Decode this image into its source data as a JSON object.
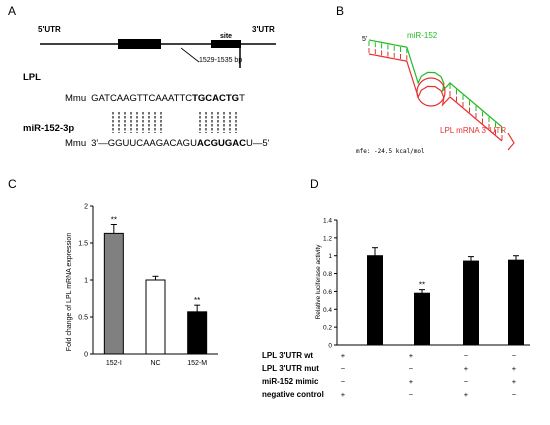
{
  "panels": {
    "A": {
      "letter": "A",
      "utr5": "5'UTR",
      "utr3": "3'UTR",
      "site": "site",
      "site_range": "1529-1535  bp",
      "gene": "LPL",
      "species": "Mmu",
      "mrna_plain": "GATCAAGTTCAAATTC",
      "mrna_bold": "TGCACTG",
      "mrna_tail": "T",
      "mirna_name": "miR-152-3p",
      "mirna_species": "Mmu",
      "mirna_plain": "3'—GGUUCAAGACAGU",
      "mirna_bold": "ACGUGAC",
      "mirna_tail": "U—5'"
    },
    "B": {
      "letter": "B",
      "five_prime": "5'",
      "mirna_label": "miR-152",
      "target_label": "LPL mRNA 3' UTR",
      "mfe": "mfe: -24.5 kcal/mol",
      "mirna_color": "#22bb22",
      "target_color": "#e83030"
    },
    "C": {
      "letter": "C",
      "ylabel": "Fold change of LPL mRNA expression",
      "yticks": [
        "0",
        "0.5",
        "1",
        "1.5",
        "2"
      ]
    },
    "D": {
      "letter": "D",
      "ylabel": "Relative luciferase activity",
      "yticks": [
        "0",
        "0.2",
        "0.4",
        "0.6",
        "0.8",
        "1",
        "1.2",
        "1.4"
      ],
      "conditions": [
        {
          "label": "LPL  3'UTR wt",
          "signs": [
            "+",
            "+",
            "−",
            "−"
          ]
        },
        {
          "label": "LPL  3'UTR mut",
          "signs": [
            "−",
            "−",
            "+",
            "+"
          ]
        },
        {
          "label": "miR-152 mimic",
          "signs": [
            "−",
            "+",
            "−",
            "+"
          ]
        },
        {
          "label": "negative control",
          "signs": [
            "+",
            "−",
            "+",
            "−"
          ]
        }
      ]
    }
  },
  "chart_data": [
    {
      "type": "bar",
      "categories": [
        "152-I",
        "NC",
        "152-M"
      ],
      "values": [
        1.63,
        1.0,
        0.57
      ],
      "errors": [
        0.12,
        0.05,
        0.09
      ],
      "significance": [
        "**",
        "",
        "**"
      ],
      "colors": [
        "#808080",
        "#ffffff",
        "#000000"
      ],
      "ylabel": "Fold change of LPL mRNA expression",
      "ylim": [
        0,
        2
      ]
    },
    {
      "type": "bar",
      "categories": [
        "",
        "",
        "",
        ""
      ],
      "values": [
        1.0,
        0.58,
        0.94,
        0.95
      ],
      "errors": [
        0.09,
        0.04,
        0.05,
        0.05
      ],
      "significance": [
        "",
        "**",
        "",
        ""
      ],
      "colors": [
        "#000000",
        "#000000",
        "#000000",
        "#000000"
      ],
      "ylabel": "Relative luciferase activity",
      "ylim": [
        0,
        1.4
      ]
    }
  ]
}
